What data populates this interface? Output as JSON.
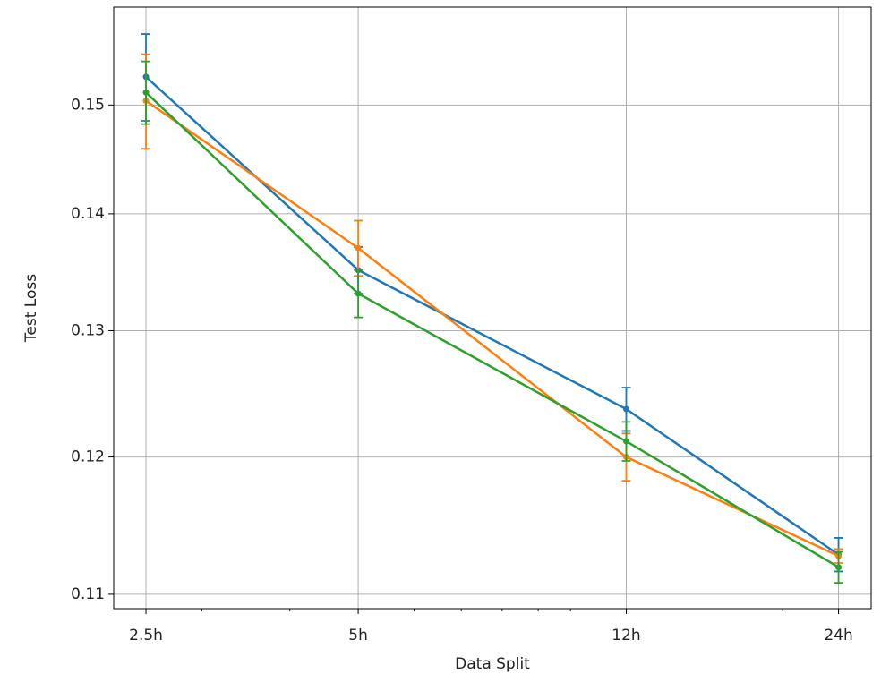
{
  "chart_data": {
    "type": "line",
    "xlabel": "Data Split",
    "ylabel": "Test Loss",
    "x": [
      2.5,
      5,
      12,
      24
    ],
    "series": [
      {
        "color": "#1f77b4",
        "values": [
          0.1527,
          0.1351,
          0.1237,
          0.1128
        ],
        "errors": [
          0.0042,
          0.002,
          0.0017,
          0.0012
        ]
      },
      {
        "color": "#ff7f0e",
        "values": [
          0.1504,
          0.137,
          0.12,
          0.1127
        ],
        "errors": [
          0.0045,
          0.0024,
          0.0018,
          0.0005
        ]
      },
      {
        "color": "#2ca02c",
        "values": [
          0.1512,
          0.1331,
          0.1212,
          0.1119
        ],
        "errors": [
          0.003,
          0.002,
          0.0015,
          0.0011
        ]
      }
    ],
    "xscale": "log",
    "yscale": "log",
    "xlim": [
      2.25,
      26.7
    ],
    "ylim": [
      0.109,
      0.1596
    ],
    "xticks": [
      {
        "value": 2.5,
        "label": "2.5h"
      },
      {
        "value": 5,
        "label": "5h"
      },
      {
        "value": 12,
        "label": "12h"
      },
      {
        "value": 24,
        "label": "24h"
      }
    ],
    "xminorticks": [
      3,
      4,
      6,
      7,
      8,
      9,
      10,
      20
    ],
    "yticks": [
      0.11,
      0.12,
      0.13,
      0.14,
      0.15
    ],
    "grid": true
  }
}
